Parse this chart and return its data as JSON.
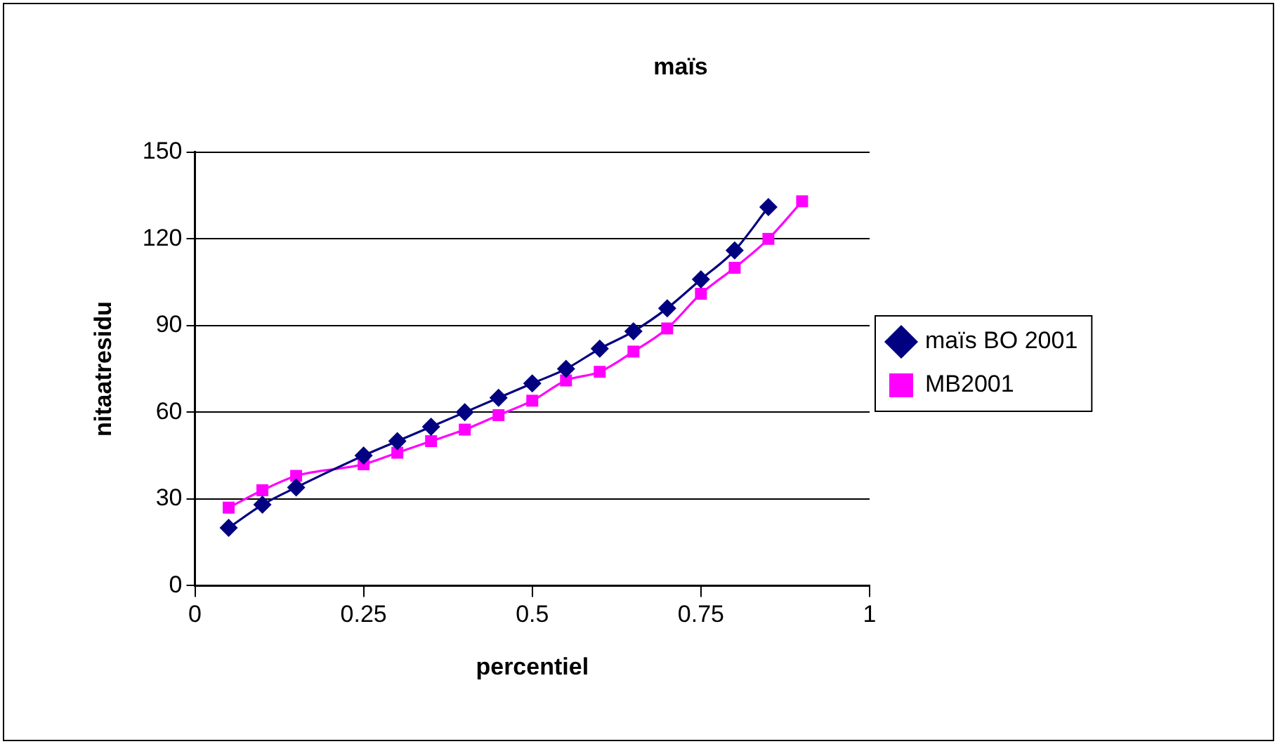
{
  "chart_data": {
    "type": "line",
    "title": "maïs",
    "xlabel": "percentiel",
    "ylabel": "nitaatresidu",
    "x": [
      0.05,
      0.1,
      0.15,
      0.25,
      0.3,
      0.35,
      0.4,
      0.45,
      0.5,
      0.55,
      0.6,
      0.65,
      0.7,
      0.75,
      0.8,
      0.85,
      0.9
    ],
    "series": [
      {
        "name": "maïs BO 2001",
        "color": "#000080",
        "marker": "diamond",
        "values": [
          20,
          28,
          34,
          45,
          50,
          55,
          60,
          65,
          70,
          75,
          82,
          88,
          96,
          106,
          116,
          131,
          null
        ]
      },
      {
        "name": "MB2001",
        "color": "#ff00ff",
        "marker": "square",
        "values": [
          27,
          33,
          38,
          42,
          46,
          50,
          54,
          59,
          64,
          71,
          74,
          81,
          89,
          101,
          110,
          120,
          133
        ]
      }
    ],
    "xlim": [
      0,
      1
    ],
    "xticks": [
      0,
      0.25,
      0.5,
      0.75,
      1
    ],
    "ylim": [
      0,
      150
    ],
    "yticks": [
      0,
      30,
      60,
      90,
      120,
      150
    ],
    "grid": "y",
    "legend": "right",
    "line_style": "solid"
  }
}
